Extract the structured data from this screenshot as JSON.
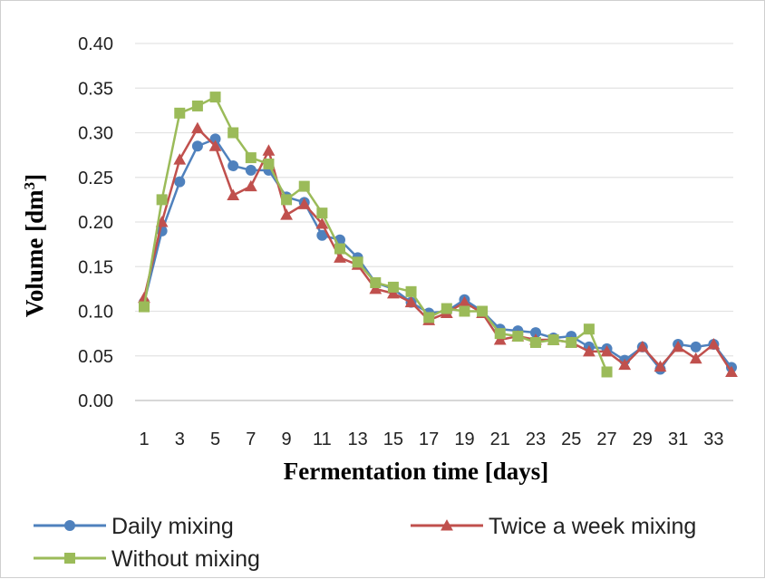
{
  "chart_data": {
    "type": "line",
    "title": "",
    "xlabel": "Fermentation time [days]",
    "ylabel": "Volume [dm",
    "ylabel_sup": "3",
    "ylabel_end": "]",
    "xlim": [
      1,
      34
    ],
    "ylim": [
      0,
      0.4
    ],
    "y_ticks": [
      "0.00",
      "0.05",
      "0.10",
      "0.15",
      "0.20",
      "0.25",
      "0.30",
      "0.35",
      "0.40"
    ],
    "x_ticks": [
      "1",
      "3",
      "5",
      "7",
      "9",
      "11",
      "13",
      "15",
      "17",
      "19",
      "21",
      "23",
      "25",
      "27",
      "29",
      "31",
      "33"
    ],
    "grid": true,
    "legend_position": "bottom",
    "series": [
      {
        "name": "Daily mixing",
        "color": "#4f81bd",
        "marker": "circle",
        "x": [
          1,
          2,
          3,
          4,
          5,
          6,
          7,
          8,
          9,
          10,
          11,
          12,
          13,
          14,
          15,
          16,
          17,
          18,
          19,
          20,
          21,
          22,
          23,
          24,
          25,
          26,
          27,
          28,
          29,
          30,
          31,
          32,
          33,
          34
        ],
        "values": [
          0.11,
          0.19,
          0.245,
          0.285,
          0.293,
          0.263,
          0.258,
          0.258,
          0.228,
          0.222,
          0.185,
          0.18,
          0.16,
          0.132,
          0.125,
          0.11,
          0.098,
          0.1,
          0.113,
          0.1,
          0.08,
          0.078,
          0.076,
          0.07,
          0.072,
          0.06,
          0.058,
          0.045,
          0.06,
          0.035,
          0.063,
          0.06,
          0.063,
          0.037
        ]
      },
      {
        "name": "Twice a week mixing",
        "color": "#c0504d",
        "marker": "triangle",
        "x": [
          1,
          2,
          3,
          4,
          5,
          6,
          7,
          8,
          9,
          10,
          11,
          12,
          13,
          14,
          15,
          16,
          17,
          18,
          19,
          20,
          21,
          22,
          23,
          24,
          25,
          26,
          27,
          28,
          29,
          30,
          31,
          32,
          33,
          34
        ],
        "values": [
          0.115,
          0.2,
          0.27,
          0.305,
          0.285,
          0.23,
          0.24,
          0.28,
          0.208,
          0.22,
          0.198,
          0.16,
          0.152,
          0.125,
          0.12,
          0.11,
          0.09,
          0.098,
          0.11,
          0.098,
          0.068,
          0.072,
          0.068,
          0.068,
          0.065,
          0.055,
          0.055,
          0.04,
          0.06,
          0.038,
          0.06,
          0.047,
          0.063,
          0.032
        ]
      },
      {
        "name": "Without mixing",
        "color": "#9bbb59",
        "marker": "square",
        "x": [
          1,
          2,
          3,
          4,
          5,
          6,
          7,
          8,
          9,
          10,
          11,
          12,
          13,
          14,
          15,
          16,
          17,
          18,
          19,
          20,
          21,
          22,
          23,
          24,
          25,
          26,
          27
        ],
        "values": [
          0.105,
          0.225,
          0.322,
          0.33,
          0.34,
          0.3,
          0.272,
          0.265,
          0.225,
          0.24,
          0.21,
          0.17,
          0.155,
          0.132,
          0.127,
          0.122,
          0.093,
          0.103,
          0.1,
          0.1,
          0.075,
          0.072,
          0.065,
          0.068,
          0.065,
          0.08,
          0.032
        ]
      }
    ]
  }
}
